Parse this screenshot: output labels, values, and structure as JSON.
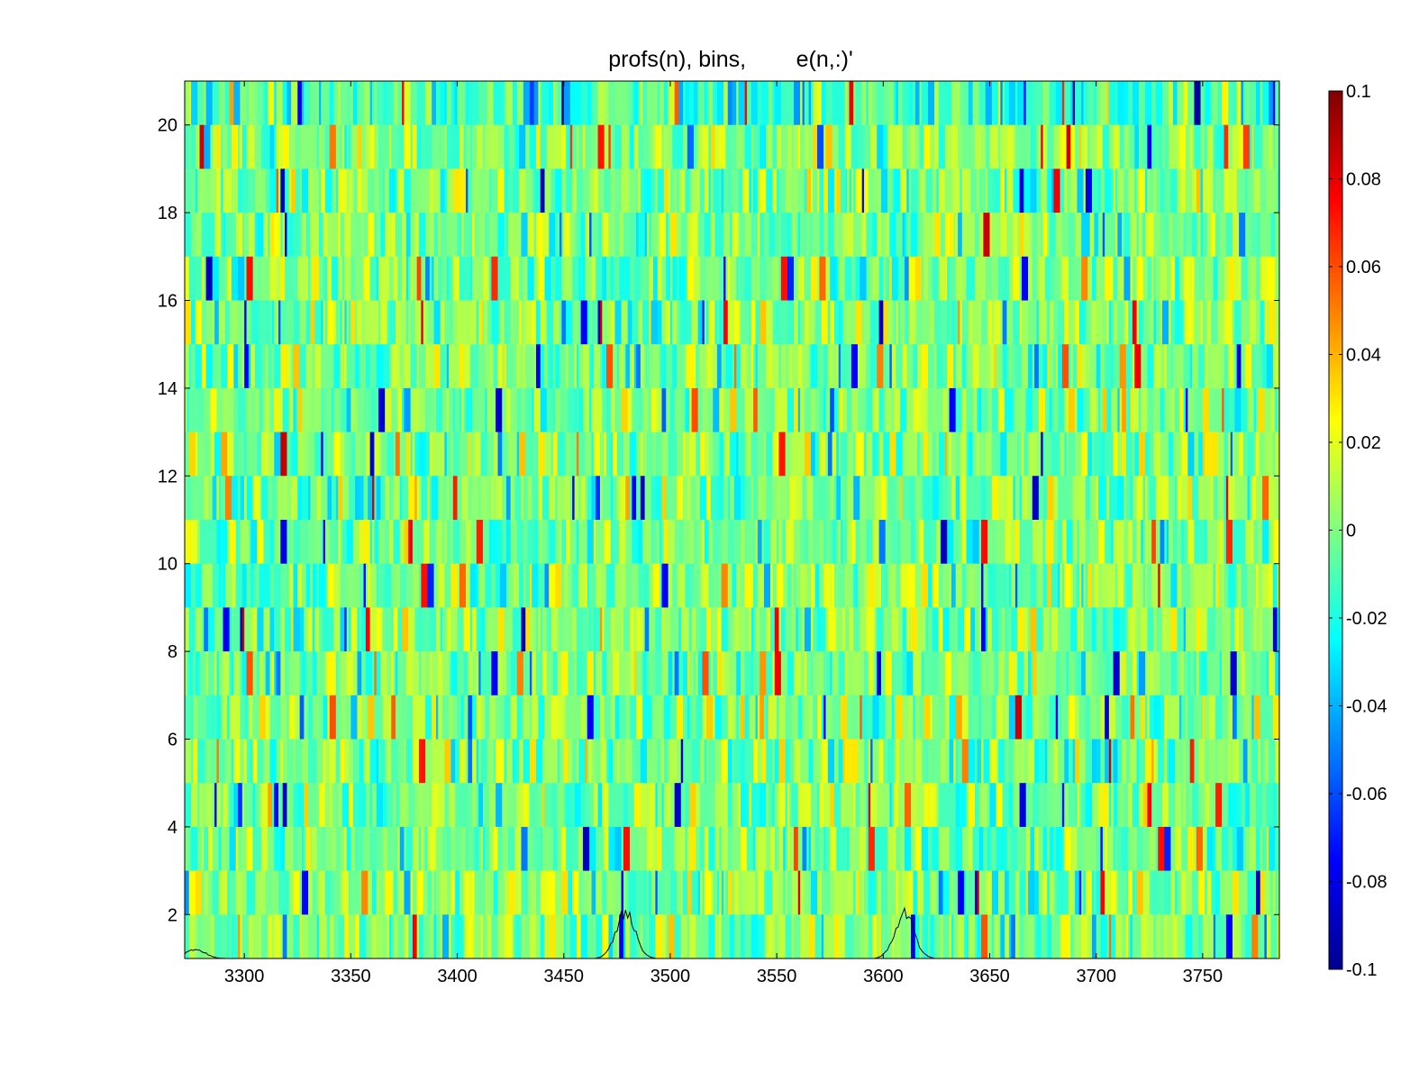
{
  "chart_data": {
    "type": "heatmap",
    "title": "profs(n), bins,        e(n,:)'",
    "xlabel": "",
    "ylabel": "",
    "xlim": [
      3272,
      3786
    ],
    "ylim": [
      1,
      21
    ],
    "x_ticks": [
      3300,
      3350,
      3400,
      3450,
      3500,
      3550,
      3600,
      3650,
      3700,
      3750
    ],
    "x_tick_labels": [
      "3300",
      "3350",
      "3400",
      "3450",
      "3500",
      "3550",
      "3600",
      "3650",
      "3700",
      "3750"
    ],
    "y_ticks": [
      2,
      4,
      6,
      8,
      10,
      12,
      14,
      16,
      18,
      20
    ],
    "y_tick_labels": [
      "2",
      "4",
      "6",
      "8",
      "10",
      "12",
      "14",
      "16",
      "18",
      "20"
    ],
    "rows": 20,
    "colormap": "jet",
    "colorbar": {
      "range": [
        -0.1,
        0.1
      ],
      "ticks": [
        0.1,
        0.08,
        0.06,
        0.04,
        0.02,
        0,
        -0.02,
        -0.04,
        -0.06,
        -0.08,
        -0.1
      ],
      "tick_labels": [
        "0.1",
        "0.08",
        "0.06",
        "0.04",
        "0.02",
        "0",
        "-0.02",
        "-0.04",
        "-0.06",
        "-0.08",
        "-0.1"
      ],
      "placement": "right"
    },
    "profile_peaks_x": [
      3277,
      3479,
      3610
    ],
    "grid": false
  }
}
